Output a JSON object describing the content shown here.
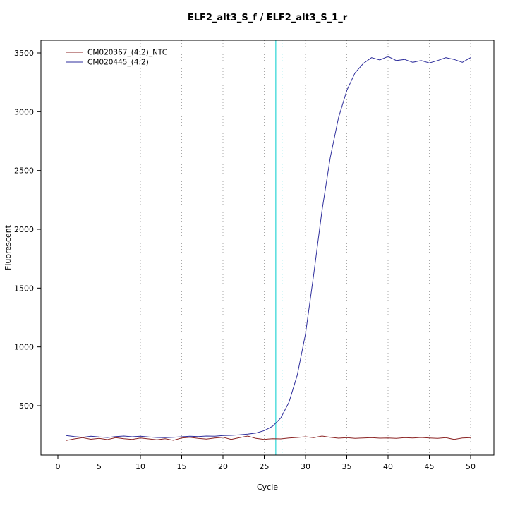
{
  "chart_data": {
    "type": "line",
    "title": "ELF2_alt3_S_f / ELF2_alt3_S_1_r",
    "xlabel": "Cycle",
    "ylabel": "Fluorescent",
    "xlim": [
      0,
      50
    ],
    "ylim": [
      150,
      3600
    ],
    "x_ticks": [
      0,
      5,
      10,
      15,
      20,
      25,
      30,
      35,
      40,
      45,
      50
    ],
    "y_ticks": [
      500,
      1000,
      1500,
      2000,
      2500,
      3000,
      3500
    ],
    "grid": "vertical-dotted",
    "grid_color": "#a8a8a8",
    "legend_position": "top-left",
    "threshold_lines": [
      {
        "x": 26.4,
        "style": "solid",
        "color": "#00cdcd",
        "name": "threshold-line-solid"
      },
      {
        "x": 27.15,
        "style": "dotted",
        "color": "#00cdcd",
        "name": "threshold-line-dotted"
      }
    ],
    "x": [
      1,
      2,
      3,
      4,
      5,
      6,
      7,
      8,
      9,
      10,
      11,
      12,
      13,
      14,
      15,
      16,
      17,
      18,
      19,
      20,
      21,
      22,
      23,
      24,
      25,
      26,
      27,
      28,
      29,
      30,
      31,
      32,
      33,
      34,
      35,
      36,
      37,
      38,
      39,
      40,
      41,
      42,
      43,
      44,
      45,
      46,
      47,
      48,
      49,
      50
    ],
    "series": [
      {
        "name": "CM020367_(4:2)_NTC",
        "color": "#8b2323",
        "values": [
          205,
          218,
          228,
          215,
          222,
          212,
          228,
          220,
          214,
          226,
          218,
          210,
          220,
          206,
          226,
          232,
          222,
          216,
          226,
          232,
          214,
          228,
          242,
          222,
          214,
          220,
          218,
          226,
          230,
          236,
          228,
          242,
          232,
          224,
          228,
          222,
          226,
          228,
          224,
          226,
          222,
          228,
          225,
          230,
          226,
          222,
          228,
          214,
          225,
          228
        ]
      },
      {
        "name": "CM020445_(4:2)",
        "color": "#2e2e9c",
        "values": [
          246,
          238,
          232,
          240,
          234,
          230,
          238,
          242,
          236,
          240,
          234,
          230,
          228,
          232,
          236,
          240,
          238,
          242,
          240,
          246,
          248,
          252,
          258,
          268,
          288,
          325,
          395,
          530,
          760,
          1110,
          1620,
          2160,
          2610,
          2950,
          3180,
          3330,
          3410,
          3460,
          3440,
          3470,
          3435,
          3445,
          3420,
          3435,
          3415,
          3435,
          3460,
          3445,
          3420,
          3460
        ]
      }
    ]
  },
  "labels": {
    "window_title": "ELF2_alt3_S_f / ELF2_alt3_S_1_r"
  }
}
